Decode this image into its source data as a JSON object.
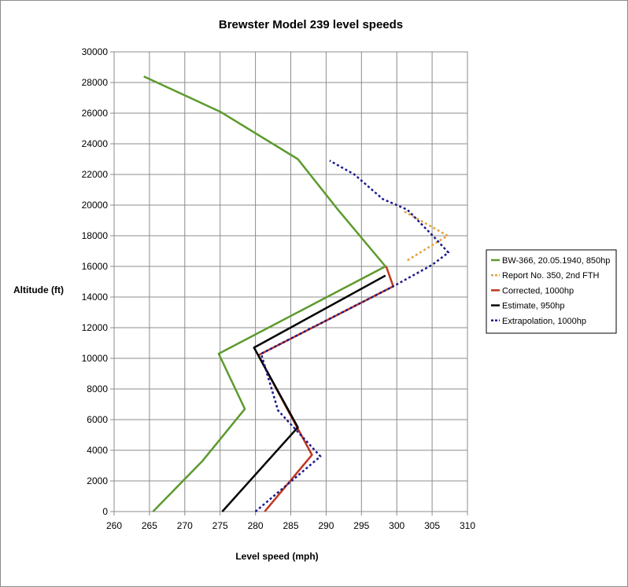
{
  "chart_data": {
    "type": "line",
    "title": "Brewster Model 239 level speeds",
    "xlabel": "Level speed (mph)",
    "ylabel": "Altitude (ft)",
    "xlim": [
      260,
      310
    ],
    "ylim": [
      0,
      30000
    ],
    "x_ticks": [
      "260",
      "265",
      "270",
      "275",
      "280",
      "285",
      "290",
      "295",
      "300",
      "305",
      "310"
    ],
    "y_ticks": [
      "0",
      "2000",
      "4000",
      "6000",
      "8000",
      "10000",
      "12000",
      "14000",
      "16000",
      "18000",
      "20000",
      "22000",
      "24000",
      "26000",
      "28000",
      "30000"
    ],
    "grid": true,
    "legend_position": "right",
    "series": [
      {
        "name": "BW-366, 20.05.1940, 850hp",
        "color": "#5c9a2e",
        "dash": "solid",
        "points": [
          [
            265.5,
            0
          ],
          [
            272.5,
            3300
          ],
          [
            278.5,
            6700
          ],
          [
            274.8,
            10300
          ],
          [
            298.4,
            16000
          ],
          [
            291.5,
            19800
          ],
          [
            286,
            23000
          ],
          [
            275,
            26100
          ],
          [
            264.2,
            28400
          ]
        ]
      },
      {
        "name": "Report No. 350, 2nd FTH",
        "color": "#e3a23c",
        "dash": "dotted",
        "points": [
          [
            301.5,
            16400
          ],
          [
            307.2,
            18000
          ],
          [
            301,
            19600
          ]
        ]
      },
      {
        "name": "Corrected, 1000hp",
        "color": "#c0361f",
        "dash": "solid",
        "points": [
          [
            281.3,
            0
          ],
          [
            288,
            3700
          ],
          [
            280.4,
            10200
          ],
          [
            299.5,
            14700
          ],
          [
            298.5,
            16000
          ]
        ]
      },
      {
        "name": "Estimate, 950hp",
        "color": "#000000",
        "dash": "solid",
        "points": [
          [
            275.3,
            0
          ],
          [
            286,
            5500
          ],
          [
            279.8,
            10700
          ],
          [
            298.4,
            15400
          ]
        ]
      },
      {
        "name": "Extrapolation, 1000hp",
        "color": "#1a1a8c",
        "dash": "dotted",
        "points": [
          [
            280,
            0
          ],
          [
            289.2,
            3600
          ],
          [
            283.2,
            6600
          ],
          [
            280.8,
            10300
          ],
          [
            299.5,
            14700
          ],
          [
            305,
            16100
          ],
          [
            307.3,
            16900
          ],
          [
            305.3,
            17900
          ],
          [
            301.5,
            19700
          ],
          [
            298,
            20400
          ],
          [
            294,
            22000
          ],
          [
            290.5,
            22900
          ]
        ]
      }
    ]
  }
}
